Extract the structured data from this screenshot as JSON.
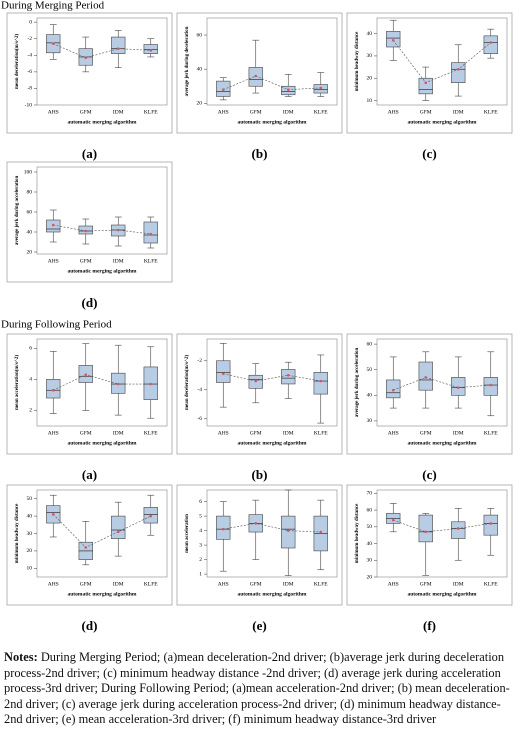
{
  "headings": [
    "During Merging Period",
    "During Following Period"
  ],
  "notes": {
    "label": "Notes:",
    "text": "During Merging Period; (a)mean deceleration-2nd driver; (b)average jerk during deceleration process-2nd driver; (c) minimum headway distance -2nd driver; (d) average jerk during acceleration process-3rd driver; During Following Period; (a)mean acceleration-2nd driver; (b) mean deceleration-2nd driver; (c) average jerk during acceleration process-2nd driver; (d) minimum headway distance-2nd driver; (e) mean acceleration-3rd driver; (f) minimum headway distance-3rd driver"
  },
  "chart_data": [
    {
      "type": "box",
      "panel": "(a)",
      "xlabel": "automatic merging algorithm",
      "ylabel": "mean deceleration(m/s^2)",
      "categories": [
        "AHS",
        "GFM",
        "IDM",
        "KLFE"
      ],
      "color": "#b8cce4",
      "mean_color": "#e0525a",
      "ylim": [
        -10,
        0.5
      ],
      "yticks": [
        -10,
        -8,
        -6,
        -4,
        -2,
        0
      ],
      "whisker_low": [
        -4.5,
        -6,
        -5.5,
        -4.2
      ],
      "q1": [
        -3.7,
        -5.2,
        -3.8,
        -3.8
      ],
      "median": [
        -2.5,
        -4.2,
        -3.2,
        -3.3
      ],
      "q3": [
        -1.5,
        -3.2,
        -1.8,
        -2.7
      ],
      "whisker_high": [
        -0.3,
        -1.8,
        -1,
        -2
      ],
      "mean": [
        -2.6,
        -4.3,
        -3.2,
        -3.4
      ]
    },
    {
      "type": "box",
      "panel": "(b)",
      "xlabel": "automatic merging algorithm",
      "ylabel": "average jerk during deceleration",
      "categories": [
        "AHS",
        "GFM",
        "IDM",
        "KLFE"
      ],
      "color": "#b8cce4",
      "mean_color": "#e0525a",
      "ylim": [
        19,
        70
      ],
      "yticks": [
        20,
        40,
        60
      ],
      "whisker_low": [
        22,
        26,
        24,
        24
      ],
      "q1": [
        24,
        30,
        25,
        26
      ],
      "median": [
        27,
        34,
        27,
        28
      ],
      "q3": [
        33,
        41,
        30,
        31
      ],
      "whisker_high": [
        35,
        57,
        37,
        38
      ],
      "mean": [
        28,
        36,
        28,
        29
      ]
    },
    {
      "type": "box",
      "panel": "(c)",
      "xlabel": "automatic merging algorithm",
      "ylabel": "minimum headway distance",
      "categories": [
        "AHS",
        "GFM",
        "IDM",
        "KLFE"
      ],
      "color": "#b8cce4",
      "mean_color": "#e0525a",
      "ylim": [
        8,
        47
      ],
      "yticks": [
        10,
        20,
        30,
        40
      ],
      "whisker_low": [
        28,
        10,
        12,
        29
      ],
      "q1": [
        34,
        13,
        18,
        31
      ],
      "median": [
        38,
        15,
        24,
        36
      ],
      "q3": [
        41,
        20,
        27,
        39
      ],
      "whisker_high": [
        46,
        25,
        35,
        42
      ],
      "mean": [
        37,
        18,
        24,
        36
      ]
    },
    {
      "type": "box",
      "panel": "(d)",
      "xlabel": "automatic merging algorithm",
      "ylabel": "average jerk during acceleration",
      "categories": [
        "AHS",
        "GFM",
        "IDM",
        "KLFE"
      ],
      "color": "#b8cce4",
      "mean_color": "#e0525a",
      "ylim": [
        18,
        105
      ],
      "yticks": [
        20,
        40,
        60,
        80,
        100
      ],
      "whisker_low": [
        30,
        28,
        26,
        24
      ],
      "q1": [
        40,
        38,
        36,
        29
      ],
      "median": [
        43,
        41,
        42,
        37
      ],
      "q3": [
        52,
        46,
        47,
        50
      ],
      "whisker_high": [
        62,
        53,
        55,
        55
      ],
      "mean": [
        47,
        41,
        42,
        38
      ]
    },
    {
      "type": "box",
      "panel": "(a)",
      "xlabel": "automatic merging algorithm",
      "ylabel": "mean acceleration(m/s^2)",
      "categories": [
        "AHS",
        "GFM",
        "IDM",
        "KLFE"
      ],
      "color": "#b8cce4",
      "mean_color": "#e0525a",
      "ylim": [
        1,
        6.6
      ],
      "yticks": [
        2,
        4,
        6
      ],
      "whisker_low": [
        1.8,
        2,
        1.7,
        1.5
      ],
      "q1": [
        2.8,
        3.8,
        3.1,
        2.7
      ],
      "median": [
        3.3,
        4.2,
        3.7,
        3.7
      ],
      "q3": [
        4,
        4.9,
        4.4,
        4.8
      ],
      "whisker_high": [
        5.8,
        6.3,
        6.2,
        6.1
      ],
      "mean": [
        3.3,
        4.3,
        3.7,
        3.7
      ]
    },
    {
      "type": "box",
      "panel": "(b)",
      "xlabel": "automatic merging algorithm",
      "ylabel": "mean deceleration(m/s^2)",
      "categories": [
        "AHS",
        "GFM",
        "IDM",
        "KLFE"
      ],
      "color": "#b8cce4",
      "mean_color": "#e0525a",
      "ylim": [
        -6.5,
        -0.5
      ],
      "yticks": [
        -6,
        -4,
        -2
      ],
      "whisker_low": [
        -5.2,
        -4.9,
        -4.6,
        -6.3
      ],
      "q1": [
        -3.5,
        -3.9,
        -3.6,
        -4.3
      ],
      "median": [
        -2.8,
        -3.3,
        -3.2,
        -3.4
      ],
      "q3": [
        -2,
        -3,
        -2.6,
        -2.8
      ],
      "whisker_high": [
        -0.8,
        -2.2,
        -2.1,
        -1.6
      ],
      "mean": [
        -2.9,
        -3.4,
        -3,
        -3.4
      ]
    },
    {
      "type": "box",
      "panel": "(c)",
      "xlabel": "automatic merging algorithm",
      "ylabel": "average jerk during acceleration",
      "categories": [
        "AHS",
        "GFM",
        "IDM",
        "KLFE"
      ],
      "color": "#b8cce4",
      "mean_color": "#e0525a",
      "ylim": [
        28,
        62
      ],
      "yticks": [
        30,
        40,
        50,
        60
      ],
      "whisker_low": [
        35,
        35,
        35,
        32
      ],
      "q1": [
        39,
        42,
        40,
        40
      ],
      "median": [
        41,
        46,
        43,
        44
      ],
      "q3": [
        46,
        53,
        47,
        47
      ],
      "whisker_high": [
        55,
        57,
        55,
        57
      ],
      "mean": [
        42,
        47,
        43,
        44
      ]
    },
    {
      "type": "box",
      "panel": "(d)",
      "xlabel": "automatic merging algorithm",
      "ylabel": "minimum headway distance",
      "categories": [
        "AHS",
        "GFM",
        "IDM",
        "KLFE"
      ],
      "color": "#b8cce4",
      "mean_color": "#e0525a",
      "ylim": [
        5,
        55
      ],
      "yticks": [
        10,
        20,
        30,
        40,
        50
      ],
      "whisker_low": [
        28,
        12,
        17,
        29
      ],
      "q1": [
        36,
        15,
        27,
        36
      ],
      "median": [
        42,
        20,
        32,
        41
      ],
      "q3": [
        46,
        25,
        40,
        45
      ],
      "whisker_high": [
        52,
        37,
        48,
        52
      ],
      "mean": [
        41,
        22,
        31,
        40
      ]
    },
    {
      "type": "box",
      "panel": "(e)",
      "xlabel": "automatic merging algorithm",
      "ylabel": "mean acceleration",
      "categories": [
        "AHS",
        "GFM",
        "IDM",
        "KLFE"
      ],
      "color": "#b8cce4",
      "mean_color": "#e0525a",
      "ylim": [
        0.8,
        6.8
      ],
      "yticks": [
        1,
        2,
        3,
        4,
        5,
        6
      ],
      "whisker_low": [
        1.2,
        2,
        0.9,
        1.3
      ],
      "q1": [
        3.4,
        3.9,
        2.8,
        2.6
      ],
      "median": [
        4.1,
        4.5,
        4.1,
        3.8
      ],
      "q3": [
        5,
        5.1,
        5,
        5
      ],
      "whisker_high": [
        6,
        6.1,
        6.8,
        6.1
      ],
      "mean": [
        4.1,
        4.5,
        4,
        3.9
      ]
    },
    {
      "type": "box",
      "panel": "(f)",
      "xlabel": "automatic merging algorithm",
      "ylabel": "minimum headway distance",
      "categories": [
        "AHS",
        "GFM",
        "IDM",
        "KLFE"
      ],
      "color": "#b8cce4",
      "mean_color": "#e0525a",
      "ylim": [
        20,
        72
      ],
      "yticks": [
        20,
        30,
        40,
        50,
        60,
        70
      ],
      "whisker_low": [
        47,
        21,
        30,
        33
      ],
      "q1": [
        52,
        41,
        43,
        45
      ],
      "median": [
        55,
        47,
        49,
        52
      ],
      "q3": [
        58,
        57,
        53,
        57
      ],
      "whisker_high": [
        64,
        58,
        61,
        61
      ],
      "mean": [
        54,
        47,
        49,
        52
      ]
    }
  ]
}
